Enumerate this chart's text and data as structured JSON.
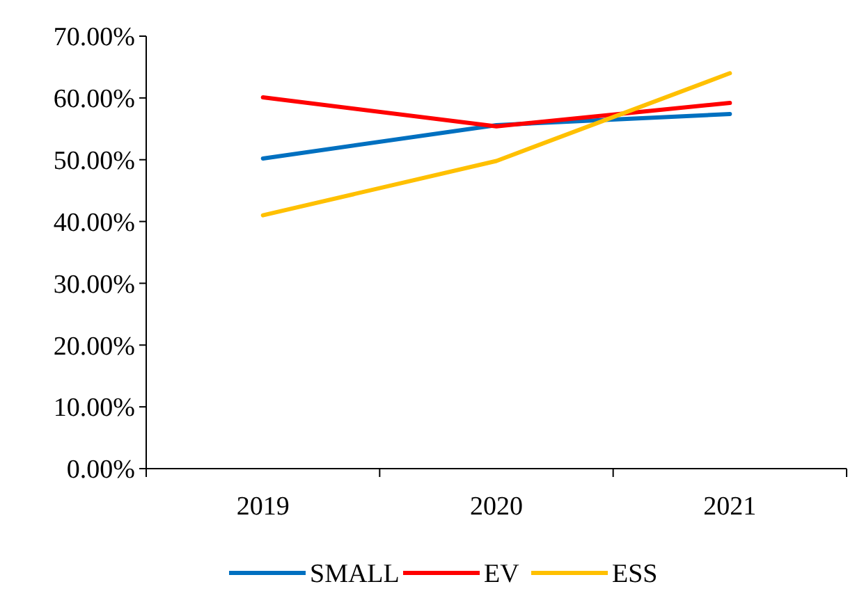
{
  "chart_data": {
    "type": "line",
    "categories": [
      "2019",
      "2020",
      "2021"
    ],
    "series": [
      {
        "name": "SMALL",
        "color": "#0070c0",
        "values": [
          50.2,
          55.6,
          57.4
        ]
      },
      {
        "name": "EV",
        "color": "#ff0000",
        "values": [
          60.1,
          55.4,
          59.2
        ]
      },
      {
        "name": "ESS",
        "color": "#ffc000",
        "values": [
          41.0,
          49.8,
          64.0
        ]
      }
    ],
    "ylim": [
      0,
      70
    ],
    "yticks": [
      {
        "value": 0,
        "label": "0.00%"
      },
      {
        "value": 10,
        "label": "10.00%"
      },
      {
        "value": 20,
        "label": "20.00%"
      },
      {
        "value": 30,
        "label": "30.00%"
      },
      {
        "value": 40,
        "label": "40.00%"
      },
      {
        "value": 50,
        "label": "50.00%"
      },
      {
        "value": 60,
        "label": "60.00%"
      },
      {
        "value": 70,
        "label": "70.00%"
      }
    ],
    "grid": false,
    "legend": "bottom",
    "marker": "none",
    "line_style": "solid"
  }
}
